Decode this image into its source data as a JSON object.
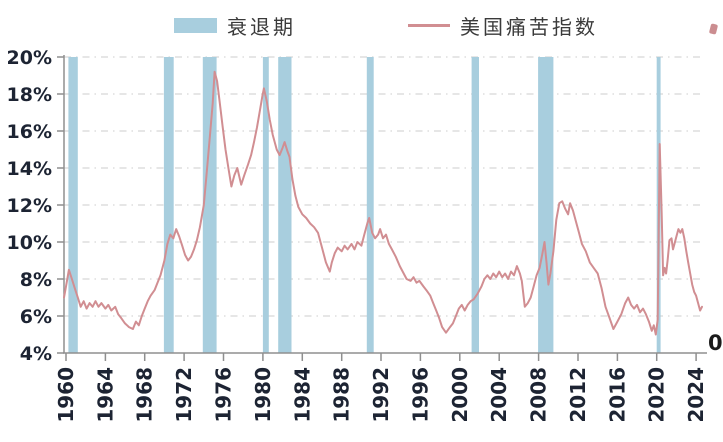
{
  "legend": {
    "recession_label": "衰退期",
    "misery_label": "美国痛苦指数"
  },
  "colors": {
    "recession_band": "#a8cede",
    "misery_line": "#d18e92",
    "gridline": "#d6d6d6",
    "axis": "#8f8f8f",
    "tick_label": "#1d2433",
    "legend_text": "#3a3a3a"
  },
  "artifacts": {
    "bottom_right_partial": "0"
  },
  "chart_data": {
    "type": "line",
    "title": "",
    "xlabel": "",
    "ylabel": "",
    "xlim": [
      1959.8,
      2024.8
    ],
    "ylim": [
      4,
      20
    ],
    "grid": true,
    "legend_position": "top-center",
    "x_ticks": [
      {
        "v": 1960,
        "label": "1960"
      },
      {
        "v": 1964,
        "label": "1964"
      },
      {
        "v": 1968,
        "label": "1968"
      },
      {
        "v": 1972,
        "label": "1972"
      },
      {
        "v": 1976,
        "label": "1976"
      },
      {
        "v": 1980,
        "label": "1980"
      },
      {
        "v": 1984,
        "label": "1984"
      },
      {
        "v": 1988,
        "label": "1988"
      },
      {
        "v": 1992,
        "label": "1992"
      },
      {
        "v": 1996,
        "label": "1996"
      },
      {
        "v": 2000,
        "label": "2000"
      },
      {
        "v": 2004,
        "label": "2004"
      },
      {
        "v": 2008,
        "label": "2008"
      },
      {
        "v": 2012,
        "label": "2012"
      },
      {
        "v": 2016,
        "label": "2016"
      },
      {
        "v": 2020,
        "label": "2020"
      },
      {
        "v": 2024,
        "label": "2024"
      }
    ],
    "y_ticks": [
      {
        "v": 4,
        "label": "4%"
      },
      {
        "v": 6,
        "label": "6%"
      },
      {
        "v": 8,
        "label": "8%"
      },
      {
        "v": 10,
        "label": "10%"
      },
      {
        "v": 12,
        "label": "12%"
      },
      {
        "v": 14,
        "label": "14%"
      },
      {
        "v": 16,
        "label": "16%"
      },
      {
        "v": 18,
        "label": "18%"
      },
      {
        "v": 20,
        "label": "20%"
      }
    ],
    "recession_bands": [
      [
        1960.25,
        1961.2
      ],
      [
        1969.95,
        1970.95
      ],
      [
        1973.9,
        1975.3
      ],
      [
        1980.0,
        1980.6
      ],
      [
        1981.55,
        1982.9
      ],
      [
        1990.55,
        1991.25
      ],
      [
        2001.2,
        2001.95
      ],
      [
        2007.95,
        2009.5
      ],
      [
        2020.0,
        2020.4
      ]
    ],
    "series": [
      {
        "name": "美国痛苦指数",
        "points": [
          [
            1959.8,
            7.0
          ],
          [
            1960.0,
            7.6
          ],
          [
            1960.3,
            8.5
          ],
          [
            1960.6,
            8.0
          ],
          [
            1960.9,
            7.5
          ],
          [
            1961.2,
            7.0
          ],
          [
            1961.5,
            6.5
          ],
          [
            1961.8,
            6.8
          ],
          [
            1962.1,
            6.4
          ],
          [
            1962.4,
            6.7
          ],
          [
            1962.7,
            6.5
          ],
          [
            1963.0,
            6.8
          ],
          [
            1963.3,
            6.5
          ],
          [
            1963.6,
            6.7
          ],
          [
            1964.0,
            6.4
          ],
          [
            1964.3,
            6.6
          ],
          [
            1964.6,
            6.3
          ],
          [
            1965.0,
            6.5
          ],
          [
            1965.3,
            6.1
          ],
          [
            1965.6,
            5.9
          ],
          [
            1966.0,
            5.6
          ],
          [
            1966.4,
            5.4
          ],
          [
            1966.8,
            5.3
          ],
          [
            1967.1,
            5.7
          ],
          [
            1967.4,
            5.5
          ],
          [
            1967.7,
            6.0
          ],
          [
            1968.0,
            6.4
          ],
          [
            1968.3,
            6.8
          ],
          [
            1968.6,
            7.1
          ],
          [
            1969.0,
            7.4
          ],
          [
            1969.3,
            7.8
          ],
          [
            1969.6,
            8.2
          ],
          [
            1970.0,
            9.0
          ],
          [
            1970.3,
            9.9
          ],
          [
            1970.6,
            10.4
          ],
          [
            1970.9,
            10.2
          ],
          [
            1971.2,
            10.7
          ],
          [
            1971.5,
            10.3
          ],
          [
            1971.8,
            9.8
          ],
          [
            1972.1,
            9.3
          ],
          [
            1972.4,
            9.0
          ],
          [
            1972.7,
            9.2
          ],
          [
            1973.0,
            9.6
          ],
          [
            1973.3,
            10.1
          ],
          [
            1973.6,
            10.8
          ],
          [
            1974.0,
            12.0
          ],
          [
            1974.3,
            13.8
          ],
          [
            1974.6,
            15.6
          ],
          [
            1974.9,
            17.5
          ],
          [
            1975.1,
            19.2
          ],
          [
            1975.35,
            18.7
          ],
          [
            1975.6,
            17.6
          ],
          [
            1975.9,
            16.3
          ],
          [
            1976.2,
            15.0
          ],
          [
            1976.5,
            14.0
          ],
          [
            1976.8,
            13.0
          ],
          [
            1977.1,
            13.6
          ],
          [
            1977.4,
            14.0
          ],
          [
            1977.8,
            13.1
          ],
          [
            1978.1,
            13.6
          ],
          [
            1978.5,
            14.2
          ],
          [
            1978.8,
            14.7
          ],
          [
            1979.1,
            15.4
          ],
          [
            1979.4,
            16.2
          ],
          [
            1979.7,
            17.1
          ],
          [
            1979.95,
            17.9
          ],
          [
            1980.1,
            18.3
          ],
          [
            1980.4,
            17.6
          ],
          [
            1980.7,
            16.6
          ],
          [
            1981.0,
            15.8
          ],
          [
            1981.4,
            15.0
          ],
          [
            1981.7,
            14.7
          ],
          [
            1982.0,
            15.1
          ],
          [
            1982.2,
            15.4
          ],
          [
            1982.5,
            14.9
          ],
          [
            1982.7,
            14.6
          ],
          [
            1983.0,
            13.4
          ],
          [
            1983.3,
            12.5
          ],
          [
            1983.6,
            11.9
          ],
          [
            1984.0,
            11.5
          ],
          [
            1984.4,
            11.3
          ],
          [
            1984.8,
            11.0
          ],
          [
            1985.2,
            10.8
          ],
          [
            1985.6,
            10.5
          ],
          [
            1986.0,
            9.7
          ],
          [
            1986.4,
            8.9
          ],
          [
            1986.8,
            8.4
          ],
          [
            1987.0,
            8.9
          ],
          [
            1987.3,
            9.4
          ],
          [
            1987.6,
            9.7
          ],
          [
            1988.0,
            9.5
          ],
          [
            1988.3,
            9.8
          ],
          [
            1988.6,
            9.6
          ],
          [
            1989.0,
            9.9
          ],
          [
            1989.3,
            9.6
          ],
          [
            1989.6,
            10.0
          ],
          [
            1990.0,
            9.8
          ],
          [
            1990.3,
            10.4
          ],
          [
            1990.6,
            11.0
          ],
          [
            1990.8,
            11.3
          ],
          [
            1991.1,
            10.5
          ],
          [
            1991.4,
            10.2
          ],
          [
            1991.7,
            10.4
          ],
          [
            1991.9,
            10.7
          ],
          [
            1992.2,
            10.2
          ],
          [
            1992.5,
            10.4
          ],
          [
            1992.8,
            9.9
          ],
          [
            1993.1,
            9.6
          ],
          [
            1993.5,
            9.2
          ],
          [
            1993.9,
            8.7
          ],
          [
            1994.2,
            8.4
          ],
          [
            1994.6,
            8.0
          ],
          [
            1995.0,
            7.9
          ],
          [
            1995.3,
            8.1
          ],
          [
            1995.6,
            7.8
          ],
          [
            1995.9,
            7.9
          ],
          [
            1996.3,
            7.6
          ],
          [
            1996.6,
            7.4
          ],
          [
            1997.0,
            7.1
          ],
          [
            1997.3,
            6.7
          ],
          [
            1997.6,
            6.3
          ],
          [
            1997.9,
            5.9
          ],
          [
            1998.2,
            5.4
          ],
          [
            1998.6,
            5.1
          ],
          [
            1999.0,
            5.4
          ],
          [
            1999.3,
            5.6
          ],
          [
            1999.6,
            6.0
          ],
          [
            1999.9,
            6.4
          ],
          [
            2000.2,
            6.6
          ],
          [
            2000.5,
            6.3
          ],
          [
            2000.8,
            6.6
          ],
          [
            2001.1,
            6.8
          ],
          [
            2001.4,
            6.9
          ],
          [
            2001.8,
            7.2
          ],
          [
            2002.2,
            7.6
          ],
          [
            2002.5,
            8.0
          ],
          [
            2002.8,
            8.2
          ],
          [
            2003.1,
            8.0
          ],
          [
            2003.4,
            8.3
          ],
          [
            2003.7,
            8.1
          ],
          [
            2004.0,
            8.4
          ],
          [
            2004.3,
            8.1
          ],
          [
            2004.6,
            8.3
          ],
          [
            2004.9,
            8.0
          ],
          [
            2005.2,
            8.4
          ],
          [
            2005.5,
            8.2
          ],
          [
            2005.8,
            8.7
          ],
          [
            2006.1,
            8.3
          ],
          [
            2006.3,
            7.9
          ],
          [
            2006.6,
            6.5
          ],
          [
            2006.9,
            6.7
          ],
          [
            2007.2,
            7.0
          ],
          [
            2007.5,
            7.6
          ],
          [
            2007.8,
            8.2
          ],
          [
            2008.1,
            8.6
          ],
          [
            2008.4,
            9.4
          ],
          [
            2008.6,
            10.0
          ],
          [
            2008.8,
            8.9
          ],
          [
            2009.0,
            7.7
          ],
          [
            2009.2,
            8.3
          ],
          [
            2009.5,
            9.5
          ],
          [
            2009.8,
            11.2
          ],
          [
            2010.1,
            12.1
          ],
          [
            2010.4,
            12.2
          ],
          [
            2010.7,
            11.8
          ],
          [
            2011.0,
            11.5
          ],
          [
            2011.2,
            12.1
          ],
          [
            2011.5,
            11.7
          ],
          [
            2011.8,
            11.1
          ],
          [
            2012.1,
            10.5
          ],
          [
            2012.4,
            9.9
          ],
          [
            2012.8,
            9.5
          ],
          [
            2013.2,
            8.9
          ],
          [
            2013.6,
            8.6
          ],
          [
            2014.0,
            8.3
          ],
          [
            2014.4,
            7.5
          ],
          [
            2014.8,
            6.5
          ],
          [
            2015.2,
            5.9
          ],
          [
            2015.6,
            5.3
          ],
          [
            2016.0,
            5.7
          ],
          [
            2016.4,
            6.1
          ],
          [
            2016.8,
            6.7
          ],
          [
            2017.1,
            7.0
          ],
          [
            2017.4,
            6.6
          ],
          [
            2017.7,
            6.4
          ],
          [
            2018.0,
            6.6
          ],
          [
            2018.3,
            6.2
          ],
          [
            2018.6,
            6.4
          ],
          [
            2018.9,
            6.1
          ],
          [
            2019.2,
            5.7
          ],
          [
            2019.5,
            5.2
          ],
          [
            2019.7,
            5.5
          ],
          [
            2019.9,
            5.0
          ],
          [
            2020.1,
            5.8
          ],
          [
            2020.3,
            15.3
          ],
          [
            2020.5,
            11.5
          ],
          [
            2020.65,
            8.2
          ],
          [
            2020.8,
            8.6
          ],
          [
            2020.95,
            8.3
          ],
          [
            2021.1,
            9.0
          ],
          [
            2021.3,
            10.1
          ],
          [
            2021.5,
            10.2
          ],
          [
            2021.65,
            9.6
          ],
          [
            2021.8,
            9.9
          ],
          [
            2022.0,
            10.3
          ],
          [
            2022.2,
            10.7
          ],
          [
            2022.4,
            10.5
          ],
          [
            2022.6,
            10.7
          ],
          [
            2022.8,
            10.2
          ],
          [
            2023.0,
            9.5
          ],
          [
            2023.2,
            8.9
          ],
          [
            2023.4,
            8.3
          ],
          [
            2023.6,
            7.7
          ],
          [
            2023.8,
            7.3
          ],
          [
            2024.0,
            7.1
          ],
          [
            2024.2,
            6.7
          ],
          [
            2024.4,
            6.3
          ],
          [
            2024.6,
            6.5
          ]
        ]
      }
    ]
  }
}
